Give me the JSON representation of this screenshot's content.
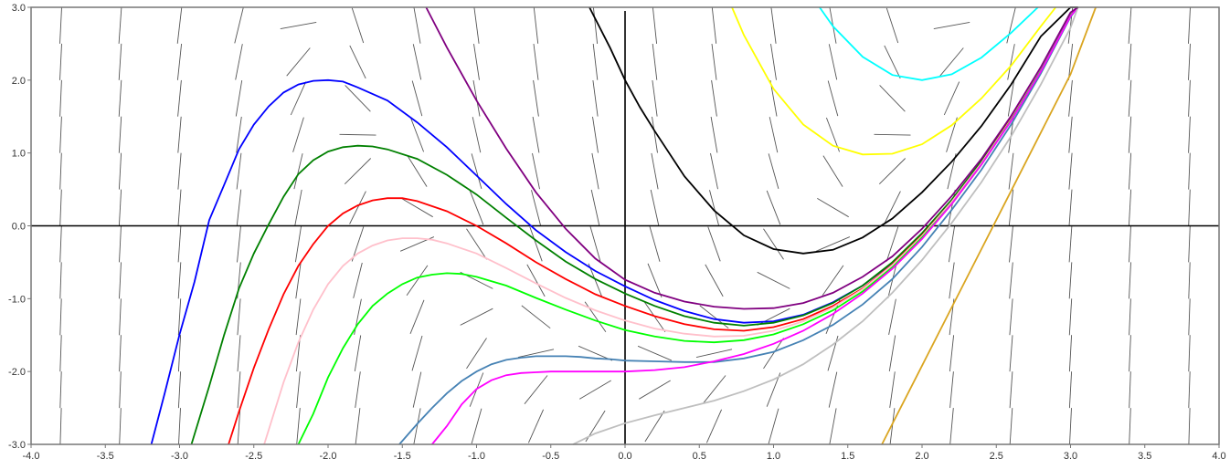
{
  "chart_data": {
    "type": "line",
    "title": "",
    "xlabel": "",
    "ylabel": "",
    "xlim": [
      -4.0,
      4.0
    ],
    "ylim": [
      -3.0,
      3.0
    ],
    "grid": false,
    "slope_field": true,
    "x_ticks": [
      "-4.0",
      "-3.5",
      "-3.0",
      "-2.5",
      "-2.0",
      "-1.5",
      "-1.0",
      "-0.5",
      "0.0",
      "0.5",
      "1.0",
      "1.5",
      "2.0",
      "2.5",
      "3.0",
      "3.5",
      "4.0"
    ],
    "y_ticks": [
      "3.0",
      "2.0",
      "1.0",
      "0.0",
      "-1.0",
      "-2.0",
      "-3.0"
    ],
    "series": [
      {
        "color": "#0000ff",
        "x": [
          -3.19,
          -3.1,
          -3.0,
          -2.9,
          -2.8,
          -2.7,
          -2.6,
          -2.5,
          -2.4,
          -2.3,
          -2.2,
          -2.1,
          -2.0,
          -1.9,
          -1.8,
          -1.6,
          -1.4,
          -1.2,
          -1.0,
          -0.8,
          -0.6,
          -0.4,
          -0.2,
          0.0,
          0.2,
          0.4,
          0.6,
          0.8,
          1.0,
          1.2,
          1.4,
          1.6,
          1.8,
          2.0,
          2.2,
          2.4,
          2.6,
          2.8,
          3.0,
          3.05
        ],
        "y": [
          -3.0,
          -2.3,
          -1.49,
          -0.77,
          0.08,
          0.56,
          1.05,
          1.39,
          1.64,
          1.83,
          1.94,
          1.99,
          2.0,
          1.98,
          1.9,
          1.72,
          1.42,
          1.08,
          0.69,
          0.3,
          -0.06,
          -0.36,
          -0.62,
          -0.83,
          -1.02,
          -1.17,
          -1.28,
          -1.33,
          -1.31,
          -1.22,
          -1.05,
          -0.82,
          -0.51,
          -0.12,
          0.34,
          0.87,
          1.48,
          2.17,
          2.92,
          3.0
        ]
      },
      {
        "color": "#008000",
        "x": [
          -2.92,
          -2.8,
          -2.7,
          -2.6,
          -2.5,
          -2.4,
          -2.3,
          -2.2,
          -2.1,
          -2.0,
          -1.9,
          -1.8,
          -1.7,
          -1.6,
          -1.4,
          -1.2,
          -1.0,
          -0.8,
          -0.6,
          -0.4,
          -0.2,
          0.0,
          0.2,
          0.4,
          0.6,
          0.8,
          1.0,
          1.2,
          1.4,
          1.6,
          1.8,
          2.0,
          2.2,
          2.4,
          2.6,
          2.8,
          3.0,
          3.05
        ],
        "y": [
          -3.0,
          -2.2,
          -1.5,
          -0.86,
          -0.38,
          0.02,
          0.4,
          0.71,
          0.9,
          1.02,
          1.08,
          1.1,
          1.09,
          1.05,
          0.92,
          0.7,
          0.43,
          0.11,
          -0.2,
          -0.49,
          -0.73,
          -0.93,
          -1.1,
          -1.24,
          -1.33,
          -1.37,
          -1.33,
          -1.23,
          -1.06,
          -0.82,
          -0.5,
          -0.1,
          0.36,
          0.89,
          1.49,
          2.17,
          2.92,
          3.0
        ]
      },
      {
        "color": "#ff0000",
        "x": [
          -2.67,
          -2.6,
          -2.5,
          -2.4,
          -2.3,
          -2.2,
          -2.1,
          -2.0,
          -1.9,
          -1.8,
          -1.7,
          -1.6,
          -1.5,
          -1.4,
          -1.2,
          -1.0,
          -0.8,
          -0.6,
          -0.4,
          -0.2,
          0.0,
          0.2,
          0.4,
          0.6,
          0.8,
          1.0,
          1.2,
          1.4,
          1.6,
          1.8,
          2.0,
          2.2,
          2.4,
          2.6,
          2.8,
          3.0,
          3.05
        ],
        "y": [
          -3.0,
          -2.55,
          -1.95,
          -1.42,
          -0.94,
          -0.55,
          -0.25,
          0.0,
          0.17,
          0.28,
          0.35,
          0.38,
          0.38,
          0.34,
          0.2,
          0.0,
          -0.24,
          -0.5,
          -0.73,
          -0.94,
          -1.1,
          -1.24,
          -1.35,
          -1.42,
          -1.44,
          -1.39,
          -1.28,
          -1.1,
          -0.86,
          -0.53,
          -0.13,
          0.33,
          0.86,
          1.47,
          2.15,
          2.91,
          3.0
        ]
      },
      {
        "color": "#ffc0cb",
        "x": [
          -2.43,
          -2.3,
          -2.2,
          -2.1,
          -2.0,
          -1.9,
          -1.8,
          -1.7,
          -1.6,
          -1.5,
          -1.4,
          -1.3,
          -1.2,
          -1.0,
          -0.8,
          -0.6,
          -0.4,
          -0.2,
          0.0,
          0.2,
          0.4,
          0.6,
          0.8,
          1.0,
          1.2,
          1.4,
          1.6,
          1.8,
          2.0,
          2.2,
          2.4,
          2.6,
          2.8,
          3.0,
          3.05
        ],
        "y": [
          -3.0,
          -2.15,
          -1.6,
          -1.15,
          -0.8,
          -0.55,
          -0.38,
          -0.27,
          -0.2,
          -0.17,
          -0.17,
          -0.19,
          -0.24,
          -0.38,
          -0.58,
          -0.79,
          -0.99,
          -1.16,
          -1.3,
          -1.41,
          -1.48,
          -1.52,
          -1.51,
          -1.44,
          -1.31,
          -1.12,
          -0.87,
          -0.54,
          -0.14,
          0.33,
          0.86,
          1.46,
          2.14,
          2.9,
          3.0
        ]
      },
      {
        "color": "#00ff00",
        "x": [
          -2.2,
          -2.1,
          -2.0,
          -1.9,
          -1.8,
          -1.7,
          -1.6,
          -1.5,
          -1.4,
          -1.3,
          -1.2,
          -1.1,
          -1.0,
          -0.8,
          -0.6,
          -0.4,
          -0.2,
          0.0,
          0.2,
          0.4,
          0.6,
          0.8,
          1.0,
          1.2,
          1.4,
          1.6,
          1.8,
          2.0,
          2.2,
          2.4,
          2.6,
          2.8,
          3.0,
          3.05
        ],
        "y": [
          -3.0,
          -2.58,
          -2.08,
          -1.68,
          -1.35,
          -1.1,
          -0.93,
          -0.8,
          -0.71,
          -0.67,
          -0.65,
          -0.66,
          -0.7,
          -0.82,
          -0.99,
          -1.15,
          -1.3,
          -1.43,
          -1.52,
          -1.58,
          -1.6,
          -1.57,
          -1.49,
          -1.35,
          -1.16,
          -0.9,
          -0.57,
          -0.16,
          0.3,
          0.84,
          1.45,
          2.13,
          2.89,
          3.0
        ]
      },
      {
        "color": "#4682b4",
        "x": [
          -1.52,
          -1.4,
          -1.3,
          -1.2,
          -1.1,
          -1.0,
          -0.9,
          -0.8,
          -0.7,
          -0.6,
          -0.5,
          -0.4,
          -0.3,
          -0.2,
          -0.1,
          0.0,
          0.2,
          0.4,
          0.6,
          0.8,
          1.0,
          1.2,
          1.4,
          1.6,
          1.8,
          2.0,
          2.2,
          2.4,
          2.6,
          2.8,
          3.0,
          3.05
        ],
        "y": [
          -3.0,
          -2.72,
          -2.5,
          -2.3,
          -2.13,
          -2.0,
          -1.9,
          -1.84,
          -1.81,
          -1.79,
          -1.79,
          -1.79,
          -1.8,
          -1.82,
          -1.83,
          -1.85,
          -1.86,
          -1.87,
          -1.87,
          -1.82,
          -1.73,
          -1.57,
          -1.36,
          -1.08,
          -0.73,
          -0.29,
          0.22,
          0.77,
          1.39,
          2.09,
          2.87,
          3.0
        ]
      },
      {
        "color": "#ff00ff",
        "x": [
          -1.3,
          -1.2,
          -1.1,
          -1.0,
          -0.9,
          -0.8,
          -0.7,
          -0.6,
          -0.5,
          -0.4,
          -0.2,
          0.0,
          0.2,
          0.4,
          0.6,
          0.8,
          1.0,
          1.2,
          1.4,
          1.6,
          1.8,
          2.0,
          2.2,
          2.4,
          2.6,
          2.8,
          3.0,
          3.05
        ],
        "y": [
          -3.0,
          -2.75,
          -2.45,
          -2.24,
          -2.12,
          -2.05,
          -2.02,
          -2.01,
          -2.0,
          -2.0,
          -2.0,
          -2.0,
          -1.98,
          -1.94,
          -1.86,
          -1.76,
          -1.62,
          -1.44,
          -1.21,
          -0.93,
          -0.59,
          -0.18,
          0.3,
          0.84,
          1.44,
          2.12,
          2.88,
          3.0
        ]
      },
      {
        "color": "#bfbfbf",
        "x": [
          -0.35,
          -0.2,
          0.0,
          0.2,
          0.4,
          0.6,
          0.8,
          1.0,
          1.2,
          1.4,
          1.6,
          1.8,
          2.0,
          2.2,
          2.4,
          2.6,
          2.8,
          3.0,
          3.05
        ],
        "y": [
          -3.0,
          -2.85,
          -2.71,
          -2.6,
          -2.5,
          -2.4,
          -2.27,
          -2.11,
          -1.9,
          -1.63,
          -1.31,
          -0.92,
          -0.47,
          0.04,
          0.6,
          1.23,
          1.94,
          2.72,
          3.0
        ]
      },
      {
        "color": "#800080",
        "x": [
          -1.34,
          -1.2,
          -1.0,
          -0.8,
          -0.6,
          -0.4,
          -0.2,
          0.0,
          0.2,
          0.4,
          0.6,
          0.8,
          1.0,
          1.2,
          1.4,
          1.6,
          1.8,
          2.0,
          2.2,
          2.4,
          2.6,
          2.8,
          3.0,
          3.05
        ],
        "y": [
          3.0,
          2.45,
          1.72,
          1.06,
          0.46,
          -0.04,
          -0.45,
          -0.74,
          -0.92,
          -1.04,
          -1.11,
          -1.14,
          -1.13,
          -1.06,
          -0.92,
          -0.7,
          -0.42,
          -0.04,
          0.41,
          0.92,
          1.51,
          2.18,
          2.93,
          3.0
        ]
      },
      {
        "color": "#000000",
        "x": [
          -0.24,
          -0.1,
          0.0,
          0.1,
          0.2,
          0.4,
          0.6,
          0.8,
          1.0,
          1.2,
          1.4,
          1.6,
          1.8,
          2.0,
          2.2,
          2.4,
          2.6,
          2.8,
          3.0,
          3.05
        ],
        "y": [
          3.0,
          2.44,
          2.0,
          1.63,
          1.3,
          0.68,
          0.21,
          -0.13,
          -0.32,
          -0.38,
          -0.33,
          -0.16,
          0.1,
          0.46,
          0.88,
          1.37,
          1.94,
          2.6,
          3.0,
          3.0
        ]
      },
      {
        "color": "#ffff00",
        "x": [
          0.72,
          0.8,
          1.0,
          1.2,
          1.4,
          1.6,
          1.8,
          2.0,
          2.2,
          2.4,
          2.6,
          2.8,
          2.9
        ],
        "y": [
          3.0,
          2.62,
          1.88,
          1.39,
          1.1,
          0.98,
          0.99,
          1.12,
          1.38,
          1.75,
          2.2,
          2.74,
          3.0
        ]
      },
      {
        "color": "#00ffff",
        "x": [
          1.31,
          1.4,
          1.6,
          1.8,
          2.0,
          2.2,
          2.4,
          2.6,
          2.78
        ],
        "y": [
          3.0,
          2.74,
          2.32,
          2.07,
          2.0,
          2.08,
          2.31,
          2.65,
          3.0
        ]
      },
      {
        "color": "#daa520",
        "x": [
          1.73,
          2.0,
          2.2,
          2.4,
          2.6,
          2.8,
          3.0,
          3.17
        ],
        "y": [
          -3.0,
          -1.92,
          -1.12,
          -0.32,
          0.48,
          1.28,
          2.08,
          3.0
        ]
      }
    ]
  }
}
